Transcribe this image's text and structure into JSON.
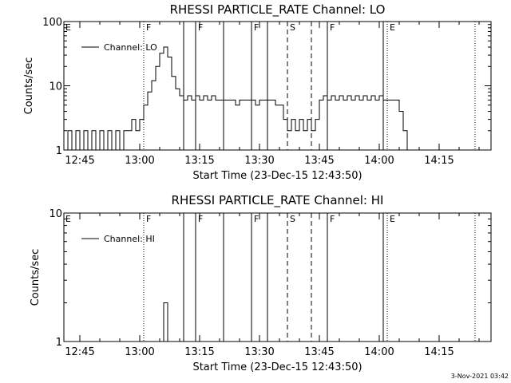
{
  "footer": {
    "timestamp": "3-Nov-2021 03:42"
  },
  "chart_data": [
    {
      "type": "line",
      "title": "RHESSI PARTICLE_RATE Channel: LO",
      "xlabel": "Start Time (23-Dec-15 12:43:50)",
      "ylabel": "Counts/sec",
      "yscale": "log",
      "ylim": [
        1,
        100
      ],
      "xlim": [
        "12:41",
        "14:28"
      ],
      "x_ticks": [
        "12:45",
        "13:00",
        "13:15",
        "13:30",
        "13:45",
        "14:00",
        "14:15"
      ],
      "y_ticks": [
        "1",
        "10",
        "100"
      ],
      "legend": {
        "position": "top-left",
        "entries": [
          "Channel: LO"
        ]
      },
      "series": [
        {
          "name": "Channel: LO",
          "x": [
            "12:41",
            "12:42",
            "12:43",
            "12:44",
            "12:45",
            "12:46",
            "12:47",
            "12:48",
            "12:49",
            "12:50",
            "12:51",
            "12:52",
            "12:53",
            "12:54",
            "12:55",
            "12:56",
            "12:57",
            "12:58",
            "12:59",
            "13:00",
            "13:01",
            "13:02",
            "13:03",
            "13:04",
            "13:05",
            "13:06",
            "13:07",
            "13:08",
            "13:09",
            "13:10",
            "13:11",
            "13:12",
            "13:13",
            "13:14",
            "13:15",
            "13:16",
            "13:17",
            "13:18",
            "13:19",
            "13:20",
            "13:21",
            "13:22",
            "13:23",
            "13:24",
            "13:25",
            "13:26",
            "13:27",
            "13:28",
            "13:29",
            "13:30",
            "13:31",
            "13:32",
            "13:33",
            "13:34",
            "13:35",
            "13:36",
            "13:37",
            "13:38",
            "13:39",
            "13:40",
            "13:41",
            "13:42",
            "13:43",
            "13:44",
            "13:45",
            "13:46",
            "13:47",
            "13:48",
            "13:49",
            "13:50",
            "13:51",
            "13:52",
            "13:53",
            "13:54",
            "13:55",
            "13:56",
            "13:57",
            "13:58",
            "13:59",
            "14:00",
            "14:01",
            "14:02",
            "14:03",
            "14:04",
            "14:05",
            "14:06",
            "14:07",
            "14:08",
            "14:09",
            "14:10",
            "14:11",
            "14:12",
            "14:13",
            "14:14",
            "14:15"
          ],
          "values": [
            1,
            2,
            1,
            2,
            1,
            2,
            1,
            2,
            1,
            2,
            1,
            2,
            1,
            2,
            1,
            2,
            2,
            3,
            2,
            3,
            5,
            8,
            12,
            20,
            32,
            40,
            28,
            14,
            9,
            7,
            6,
            7,
            6,
            7,
            6,
            7,
            6,
            7,
            6,
            6,
            6,
            6,
            6,
            5,
            6,
            6,
            6,
            6,
            5,
            6,
            6,
            6,
            6,
            5,
            5,
            3,
            2,
            3,
            2,
            3,
            2,
            3,
            2,
            3,
            6,
            7,
            6,
            7,
            6,
            7,
            6,
            7,
            6,
            7,
            6,
            7,
            6,
            7,
            6,
            7,
            6,
            6,
            6,
            6,
            4,
            2,
            1,
            1,
            1,
            1,
            1,
            1,
            1,
            1,
            1
          ]
        }
      ],
      "annotations": [
        {
          "label": "E",
          "x": "12:41",
          "style": "text"
        },
        {
          "label": "F",
          "x": "13:01",
          "style": "dotted"
        },
        {
          "label": "",
          "x": "13:11",
          "style": "solid"
        },
        {
          "label": "F",
          "x": "13:14",
          "style": "solid"
        },
        {
          "label": "",
          "x": "13:21",
          "style": "solid"
        },
        {
          "label": "F",
          "x": "13:28",
          "style": "solid"
        },
        {
          "label": "",
          "x": "13:32",
          "style": "solid"
        },
        {
          "label": "S",
          "x": "13:37",
          "style": "dashed"
        },
        {
          "label": "",
          "x": "13:43",
          "style": "dashed"
        },
        {
          "label": "F",
          "x": "13:47",
          "style": "solid"
        },
        {
          "label": "",
          "x": "14:01",
          "style": "solid"
        },
        {
          "label": "E",
          "x": "14:02",
          "style": "dotted"
        },
        {
          "label": "",
          "x": "14:24",
          "style": "dotted"
        }
      ]
    },
    {
      "type": "line",
      "title": "RHESSI PARTICLE_RATE Channel: HI",
      "xlabel": "Start Time (23-Dec-15 12:43:50)",
      "ylabel": "Counts/sec",
      "yscale": "log",
      "ylim": [
        1,
        10
      ],
      "xlim": [
        "12:41",
        "14:28"
      ],
      "x_ticks": [
        "12:45",
        "13:00",
        "13:15",
        "13:30",
        "13:45",
        "14:00",
        "14:15"
      ],
      "y_ticks": [
        "1",
        "10"
      ],
      "legend": {
        "position": "top-left",
        "entries": [
          "Channel: HI"
        ]
      },
      "series": [
        {
          "name": "Channel: HI",
          "x": [
            "13:05",
            "13:06",
            "13:07"
          ],
          "values": [
            1,
            2,
            1
          ]
        }
      ],
      "annotations": [
        {
          "label": "E",
          "x": "12:41",
          "style": "text"
        },
        {
          "label": "F",
          "x": "13:01",
          "style": "dotted"
        },
        {
          "label": "",
          "x": "13:11",
          "style": "solid"
        },
        {
          "label": "F",
          "x": "13:14",
          "style": "solid"
        },
        {
          "label": "",
          "x": "13:21",
          "style": "solid"
        },
        {
          "label": "F",
          "x": "13:28",
          "style": "solid"
        },
        {
          "label": "",
          "x": "13:32",
          "style": "solid"
        },
        {
          "label": "S",
          "x": "13:37",
          "style": "dashed"
        },
        {
          "label": "",
          "x": "13:43",
          "style": "dashed"
        },
        {
          "label": "F",
          "x": "13:47",
          "style": "solid"
        },
        {
          "label": "",
          "x": "14:01",
          "style": "solid"
        },
        {
          "label": "E",
          "x": "14:02",
          "style": "dotted"
        },
        {
          "label": "",
          "x": "14:24",
          "style": "dotted"
        }
      ]
    }
  ]
}
